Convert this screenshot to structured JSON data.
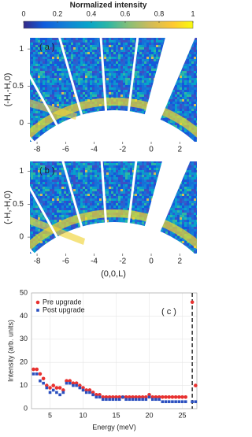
{
  "chart_data": [
    {
      "type": "colorbar",
      "title": "Normalized intensity",
      "xlim": [
        0,
        1
      ],
      "xticks": [
        0,
        0.2,
        0.4,
        0.6,
        0.8,
        1
      ]
    },
    {
      "type": "heatmap",
      "annotation": "( a )",
      "ylabel": "(-H,-H,0)",
      "xlim": [
        -8.5,
        3.2
      ],
      "ylim": [
        -0.25,
        1.15
      ],
      "xticks": [
        -8,
        -6,
        -4,
        -2,
        0,
        2
      ],
      "yticks": [
        0,
        0.5,
        1
      ]
    },
    {
      "type": "heatmap",
      "annotation": "( b )",
      "ylabel": "(-H,-H,0)",
      "xlabel": "(0,0,L)",
      "xlim": [
        -8.5,
        3.2
      ],
      "ylim": [
        -0.25,
        1.15
      ],
      "xticks": [
        -8,
        -6,
        -4,
        -2,
        0,
        2
      ],
      "yticks": [
        0,
        0.5,
        1
      ]
    },
    {
      "type": "scatter",
      "annotation": "( c )",
      "xlabel": "Energy (meV)",
      "ylabel": "Intensity (arb. units)",
      "xlim": [
        2.2,
        27.2
      ],
      "ylim": [
        0,
        50
      ],
      "xticks": [
        5,
        10,
        15,
        20,
        25
      ],
      "yticks": [
        0,
        10,
        20,
        30,
        40,
        50
      ],
      "grid": true,
      "vline": 26.5,
      "x": [
        2.5,
        3,
        3.5,
        4,
        4.5,
        5,
        5.5,
        6,
        6.5,
        7,
        7.5,
        8,
        8.5,
        9,
        9.5,
        10,
        10.5,
        11,
        11.5,
        12,
        12.5,
        13,
        13.5,
        14,
        14.5,
        15,
        15.5,
        16,
        16.5,
        17,
        17.5,
        18,
        18.5,
        19,
        19.5,
        20,
        20.5,
        21,
        21.5,
        22,
        22.5,
        23,
        23.5,
        24,
        24.5,
        25,
        25.5,
        26.5,
        27
      ],
      "series": [
        {
          "name": "Pre upgrade",
          "color": "#e8312f",
          "values": [
            17,
            17,
            15,
            13,
            10,
            9,
            10,
            9,
            9,
            8,
            12,
            12,
            11,
            11,
            10,
            9,
            8,
            8,
            7,
            6,
            6,
            5,
            5,
            5,
            5,
            5,
            5,
            5,
            5,
            5,
            5,
            5,
            5,
            5,
            5,
            6,
            5,
            5,
            5,
            5,
            5,
            5,
            5,
            5,
            5,
            5,
            5,
            46,
            10
          ]
        },
        {
          "name": "Post upgrade",
          "color": "#2a4fbf",
          "values": [
            15,
            15,
            12,
            11,
            9,
            7,
            8,
            7,
            6,
            7,
            11,
            11,
            10,
            10,
            9,
            8,
            7,
            7,
            6,
            5,
            5,
            4,
            4,
            4,
            4,
            4,
            4,
            5,
            4,
            4,
            4,
            4,
            4,
            4,
            4,
            5,
            4,
            4,
            4,
            3,
            3,
            3,
            3,
            3,
            3,
            3,
            3,
            3,
            3
          ]
        }
      ]
    }
  ]
}
